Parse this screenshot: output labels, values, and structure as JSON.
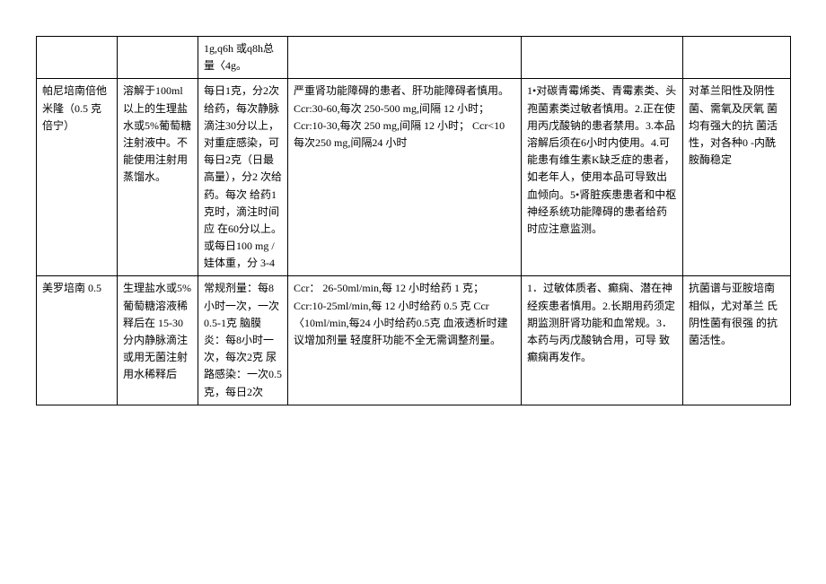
{
  "rows": [
    {
      "c1": "",
      "c2": "",
      "c3": "1g,q6h 或q8h总量〈4g。",
      "c4": "",
      "c5": "",
      "c6": ""
    },
    {
      "c1": "帕尼培南倍他米隆（0.5 克倍宁）",
      "c2": "溶解于100ml 以上的生理盐水或5%葡萄糖注射液中。不能使用注射用蒸馏水。",
      "c3": "每日1克，分2次给药，每次静脉滴注30分以上，对重症感染，可每日2克（日最高量），分2 次给药。每次 给药1克时，滴注时间应 在60分以上。 或每日100 mg /娃体重，分 3-4",
      "c4": "严重肾功能障碍的患者、肝功能障碍者慎用。Ccr:30-60,每次 250-500 mg,间隔 12 小时；Ccr:10-30,每次 250 mg,间隔 12 小时； Ccr<10 每次250 mg,间隔24 小时",
      "c5": "1•对碳青霉烯类、青霉素类、头孢菌素类过敏者慎用。2.正在使用丙戊酸钠的患者禁用。3.本品溶解后须在6小时内使用。4.可能患有维生素K缺乏症的患者，如老年人，使用本品可导致出血倾向。5•肾脏疾患患者和中枢神经系统功能障碍的患者给药时应注意监测。",
      "c6": "对革兰阳性及阴性菌、需氧及厌氧 菌均有强大的抗 菌活性，对各种0 -内酰胺酶稳定"
    },
    {
      "c1": "美罗培南 0.5",
      "c2": "生理盐水或5%葡萄糖溶液稀释后在 15-30 分内静脉滴注或用无菌注射用水稀释后",
      "c3": "常规剂量：每8小时一次，一次0.5-1克 脑膜炎：每8小时一次，每次2克 尿路感染：一次0.5克，每日2次",
      "c4": "Ccr： 26-50ml/min,每 12 小时给药 1 克；Ccr:10-25ml/min,每 12 小时给药 0.5 克 Ccr〈10ml/min,每24 小时给药0.5克  血液透析时建议增加剂量 轻度肝功能不全无需调整剂量。",
      "c5": "1．过敏体质者、癫痫、潜在神 经疾患者慎用。2.长期用药须定期监测肝肾功能和血常规。3．本药与丙戊酸钠合用，可导 致癫痫再发作。",
      "c6": "抗菌谱与亚胺培南相似，尤对革兰 氏阴性菌有很强 的抗菌活性。"
    }
  ]
}
